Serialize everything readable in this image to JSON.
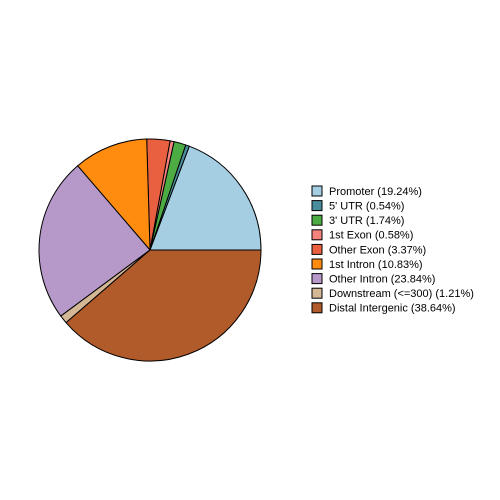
{
  "chart_data": {
    "type": "pie",
    "categories": [
      "Promoter (19.24%)",
      "5' UTR (0.54%)",
      "3' UTR (1.74%)",
      "1st Exon (0.58%)",
      "Other Exon (3.37%)",
      "1st Intron (10.83%)",
      "Other Intron (23.84%)",
      "Downstream (<=300) (1.21%)",
      "Distal Intergenic (38.64%)"
    ],
    "values": [
      19.24,
      0.54,
      1.74,
      0.58,
      3.37,
      10.83,
      23.84,
      1.21,
      38.64
    ],
    "colors": [
      "#a6cee3",
      "#4a8d9c",
      "#4dab43",
      "#f4837d",
      "#e8603f",
      "#ff8c0e",
      "#b699c9",
      "#d4b896",
      "#b15a2a"
    ],
    "legend": "right"
  }
}
